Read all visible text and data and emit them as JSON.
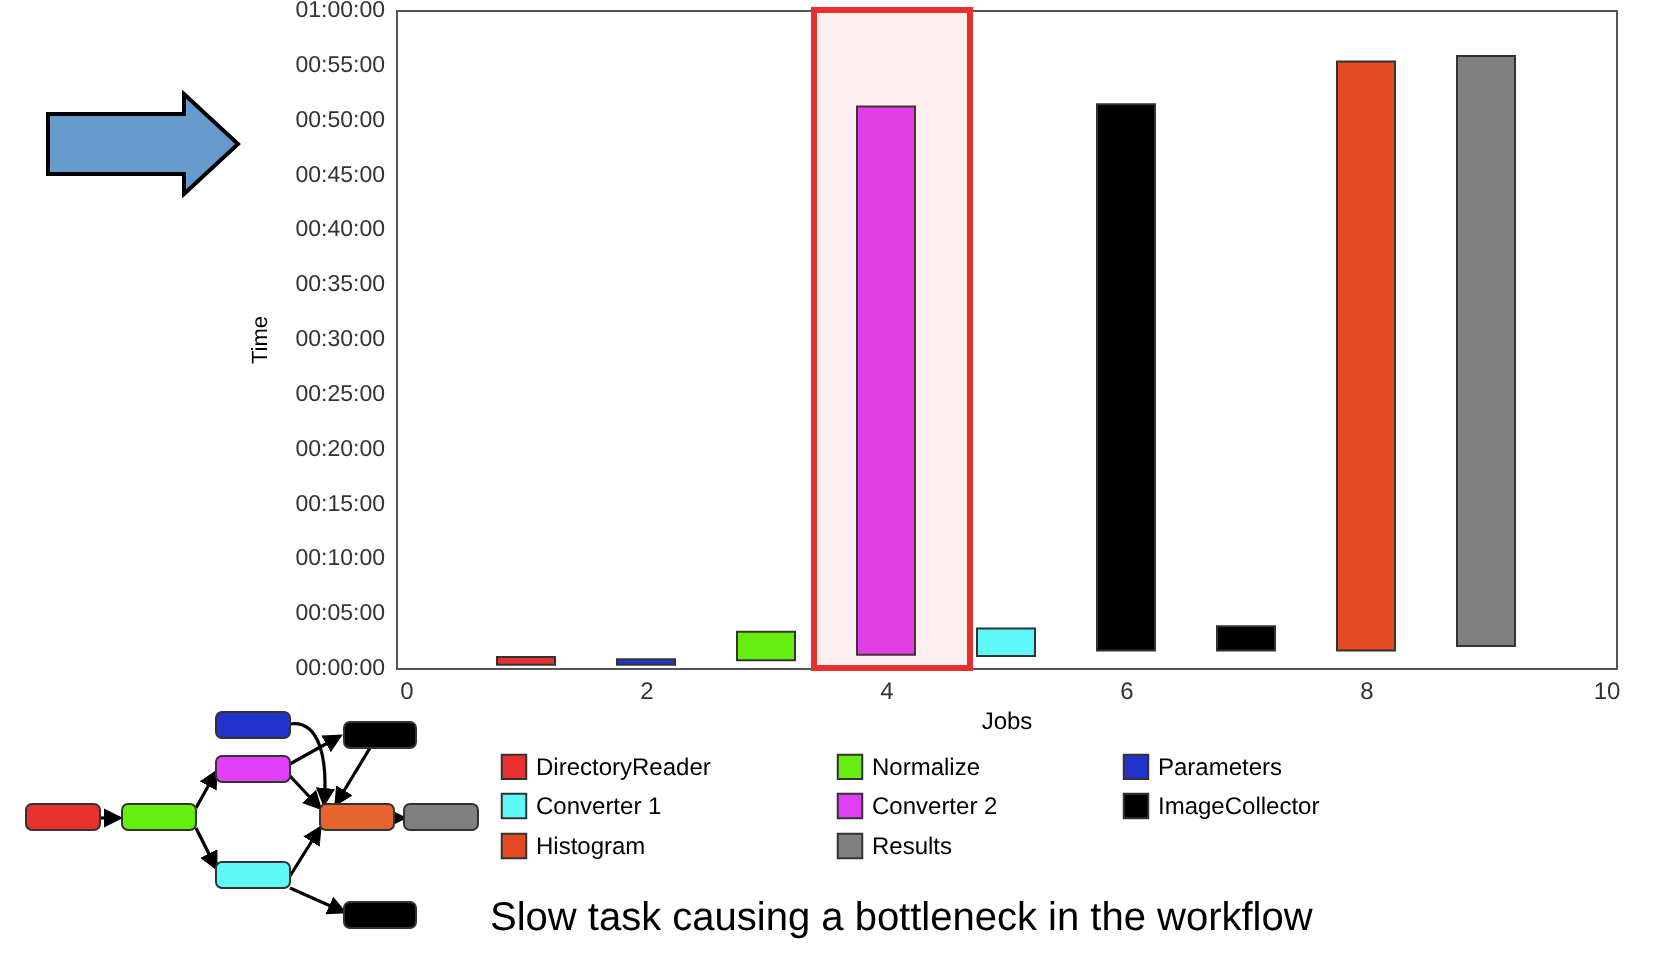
{
  "chart_data": {
    "type": "bar",
    "xlabel": "Jobs",
    "ylabel": "Time",
    "x": [
      1,
      2,
      3,
      4,
      5,
      6,
      7,
      8,
      9
    ],
    "series": [
      {
        "name": "DirectoryReader",
        "color": "#e8302e",
        "values": [
          0.7,
          null,
          null,
          null,
          null,
          null,
          null,
          null,
          null
        ],
        "base": [
          0.3,
          null,
          null,
          null,
          null,
          null,
          null,
          null,
          null
        ]
      },
      {
        "name": "Normalize",
        "color": "#66ee11",
        "values": [
          null,
          null,
          2.6,
          null,
          null,
          null,
          null,
          null,
          null
        ],
        "base": [
          null,
          null,
          0.7,
          null,
          null,
          null,
          null,
          null,
          null
        ]
      },
      {
        "name": "Parameters",
        "color": "#2233cc",
        "values": [
          null,
          0.5,
          null,
          null,
          null,
          null,
          null,
          null,
          null
        ],
        "base": [
          null,
          0.3,
          null,
          null,
          null,
          null,
          null,
          null,
          null
        ]
      },
      {
        "name": "Converter 1",
        "color": "#5ff8f8",
        "values": [
          null,
          null,
          null,
          null,
          2.5,
          null,
          null,
          null,
          null
        ],
        "base": [
          null,
          null,
          null,
          null,
          1.1,
          null,
          null,
          null,
          null
        ]
      },
      {
        "name": "Converter 2",
        "color": "#e040f8",
        "values": [
          null,
          null,
          null,
          50.0,
          null,
          null,
          null,
          null,
          null
        ],
        "base": [
          null,
          null,
          null,
          1.2,
          null,
          null,
          null,
          null,
          null
        ]
      },
      {
        "name": "ImageCollector",
        "color": "#000000",
        "values": [
          null,
          null,
          null,
          null,
          null,
          49.8,
          2.2,
          null,
          null
        ],
        "base": [
          null,
          null,
          null,
          null,
          null,
          1.6,
          1.6,
          null,
          null
        ]
      },
      {
        "name": "Histogram",
        "color": "#e44a23",
        "values": [
          null,
          null,
          null,
          null,
          null,
          null,
          null,
          53.7,
          null
        ],
        "base": [
          null,
          null,
          null,
          null,
          null,
          null,
          null,
          1.6,
          null
        ]
      },
      {
        "name": "Results",
        "color": "#808080",
        "values": [
          null,
          null,
          null,
          null,
          null,
          null,
          null,
          null,
          53.8
        ],
        "base": [
          null,
          null,
          null,
          null,
          null,
          null,
          null,
          null,
          2.0
        ]
      }
    ],
    "xlim": [
      0,
      10
    ],
    "xticks": [
      0,
      2,
      4,
      6,
      8,
      10
    ],
    "ylim": [
      0,
      60
    ],
    "yticks": [
      {
        "value": 0,
        "label": "00:00:00"
      },
      {
        "value": 5,
        "label": "00:05:00"
      },
      {
        "value": 10,
        "label": "00:10:00"
      },
      {
        "value": 15,
        "label": "00:15:00"
      },
      {
        "value": 20,
        "label": "00:20:00"
      },
      {
        "value": 25,
        "label": "00:25:00"
      },
      {
        "value": 30,
        "label": "00:30:00"
      },
      {
        "value": 35,
        "label": "00:35:00"
      },
      {
        "value": 40,
        "label": "00:40:00"
      },
      {
        "value": 45,
        "label": "00:45:00"
      },
      {
        "value": 50,
        "label": "00:50:00"
      },
      {
        "value": 55,
        "label": "00:55:00"
      },
      {
        "value": 60,
        "label": "01:00:00"
      }
    ],
    "bands": [
      {
        "axis": "x",
        "from": 3.4,
        "to": 4.7,
        "color": "#e83030"
      }
    ],
    "grid": false,
    "legend": "bottom",
    "annotations": [
      "Slow task causing a bottleneck in the workflow"
    ]
  }
}
